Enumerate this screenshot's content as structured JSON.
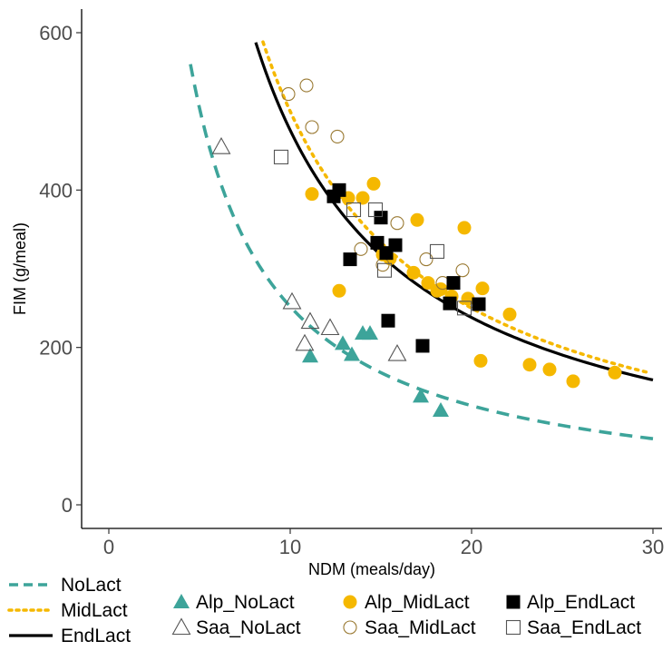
{
  "chart_data": {
    "type": "scatter",
    "title": "",
    "xlabel": "NDM (meals/day)",
    "ylabel": "FIM (g/meal)",
    "xlim": [
      -1.5,
      30.5
    ],
    "ylim": [
      -30,
      630
    ],
    "x_ticks": [
      0,
      10,
      20,
      30
    ],
    "y_ticks": [
      0,
      200,
      400,
      600
    ],
    "grid": false,
    "legend_position": "bottom",
    "colors": {
      "NoLact": "#3da49a",
      "MidLact": "#f5b800",
      "EndLact": "#000000",
      "saa_mid_edge": "#9a7a33",
      "saa_open_edge": "#555555"
    },
    "lines": [
      {
        "name": "NoLact",
        "style": "dashed",
        "color": "#3da49a",
        "x_range": [
          4.5,
          30
        ],
        "k": 2520
      },
      {
        "name": "MidLact",
        "style": "dotted",
        "color": "#f5b800",
        "x_range": [
          8.5,
          29.8
        ],
        "k": 5000
      },
      {
        "name": "EndLact",
        "style": "solid",
        "color": "#000000",
        "x_range": [
          8.1,
          30
        ],
        "k": 4760
      }
    ],
    "series": [
      {
        "name": "Alp_NoLact",
        "marker": "triangle-filled",
        "color": "#3da49a",
        "points": [
          [
            11.1,
            189
          ],
          [
            12.9,
            205
          ],
          [
            13.4,
            191
          ],
          [
            14.0,
            218
          ],
          [
            14.4,
            218
          ],
          [
            17.2,
            138
          ],
          [
            18.3,
            120
          ]
        ]
      },
      {
        "name": "Saa_NoLact",
        "marker": "triangle-open",
        "color": "#555555",
        "points": [
          [
            6.2,
            455
          ],
          [
            10.1,
            258
          ],
          [
            11.1,
            233
          ],
          [
            10.8,
            205
          ],
          [
            12.2,
            225
          ],
          [
            15.9,
            192
          ]
        ]
      },
      {
        "name": "Alp_MidLact",
        "marker": "circle-filled",
        "color": "#f5b800",
        "points": [
          [
            11.2,
            395
          ],
          [
            12.7,
            272
          ],
          [
            13.2,
            390
          ],
          [
            14.0,
            390
          ],
          [
            14.6,
            408
          ],
          [
            15.1,
            318
          ],
          [
            15.5,
            313
          ],
          [
            16.8,
            295
          ],
          [
            17.0,
            362
          ],
          [
            17.6,
            282
          ],
          [
            18.1,
            272
          ],
          [
            18.3,
            274
          ],
          [
            18.9,
            265
          ],
          [
            19.6,
            352
          ],
          [
            19.8,
            262
          ],
          [
            20.5,
            183
          ],
          [
            20.6,
            275
          ],
          [
            22.1,
            242
          ],
          [
            23.2,
            178
          ],
          [
            24.3,
            172
          ],
          [
            25.6,
            157
          ],
          [
            27.9,
            168
          ]
        ]
      },
      {
        "name": "Saa_MidLact",
        "marker": "circle-open",
        "color": "#9a7a33",
        "points": [
          [
            9.9,
            522
          ],
          [
            10.9,
            533
          ],
          [
            11.2,
            480
          ],
          [
            12.6,
            468
          ],
          [
            13.9,
            325
          ],
          [
            15.1,
            305
          ],
          [
            15.9,
            358
          ],
          [
            17.5,
            312
          ],
          [
            18.4,
            282
          ],
          [
            19.5,
            298
          ]
        ]
      },
      {
        "name": "Alp_EndLact",
        "marker": "square-filled",
        "color": "#000000",
        "points": [
          [
            12.4,
            392
          ],
          [
            12.7,
            400
          ],
          [
            13.3,
            312
          ],
          [
            14.8,
            333
          ],
          [
            15.0,
            365
          ],
          [
            15.3,
            320
          ],
          [
            15.4,
            234
          ],
          [
            15.8,
            330
          ],
          [
            17.3,
            202
          ],
          [
            18.8,
            256
          ],
          [
            19.0,
            282
          ],
          [
            20.4,
            255
          ]
        ]
      },
      {
        "name": "Saa_EndLact",
        "marker": "square-open",
        "color": "#555555",
        "points": [
          [
            9.5,
            442
          ],
          [
            13.5,
            375
          ],
          [
            14.7,
            375
          ],
          [
            15.2,
            298
          ],
          [
            18.1,
            322
          ],
          [
            19.6,
            250
          ]
        ]
      }
    ]
  }
}
